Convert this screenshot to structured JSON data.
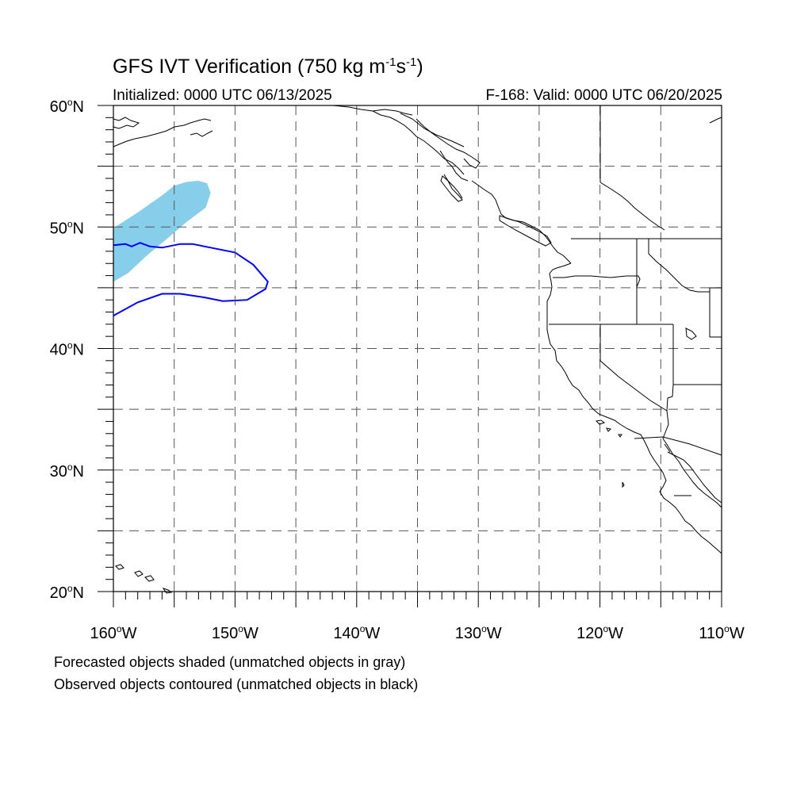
{
  "title": {
    "main": "GFS IVT Verification (750 kg m",
    "exp1": "-1",
    "mid": "s",
    "exp2": "-1",
    "end": ")"
  },
  "initialized": "Initialized: 0000 UTC 06/13/2025",
  "valid": "F-168: Valid: 0000 UTC 06/20/2025",
  "map": {
    "lon_range": [
      -160,
      -110
    ],
    "lat_range": [
      20,
      60
    ],
    "lat_ticks": [
      {
        "value": 20,
        "num": "20",
        "sym": "o",
        "hem": "N"
      },
      {
        "value": 30,
        "num": "30",
        "sym": "o",
        "hem": "N"
      },
      {
        "value": 40,
        "num": "40",
        "sym": "o",
        "hem": "N"
      },
      {
        "value": 50,
        "num": "50",
        "sym": "o",
        "hem": "N"
      },
      {
        "value": 60,
        "num": "60",
        "sym": "o",
        "hem": "N"
      }
    ],
    "lon_ticks": [
      {
        "value": -160,
        "num": "160",
        "sym": "o",
        "hem": "W"
      },
      {
        "value": -150,
        "num": "150",
        "sym": "o",
        "hem": "W"
      },
      {
        "value": -140,
        "num": "140",
        "sym": "o",
        "hem": "W"
      },
      {
        "value": -130,
        "num": "130",
        "sym": "o",
        "hem": "W"
      },
      {
        "value": -120,
        "num": "120",
        "sym": "o",
        "hem": "W"
      },
      {
        "value": -110,
        "num": "110",
        "sym": "o",
        "hem": "W"
      }
    ],
    "grid_interval_deg": 5,
    "grid_style": "dashed",
    "forecast_object_color": "#87ceeb",
    "observed_object_color": "#0000ff",
    "forecast_object": [
      [
        -160,
        49.9
      ],
      [
        -158,
        51.2
      ],
      [
        -156,
        52.6
      ],
      [
        -155,
        53.4
      ],
      [
        -154,
        53.7
      ],
      [
        -153,
        53.8
      ],
      [
        -152.3,
        53.6
      ],
      [
        -152.0,
        52.8
      ],
      [
        -152.4,
        51.6
      ],
      [
        -154,
        50.4
      ],
      [
        -155.5,
        49.1
      ],
      [
        -157.2,
        47.7
      ],
      [
        -158.8,
        46.2
      ],
      [
        -160,
        45.5
      ]
    ],
    "observed_object": [
      [
        -160,
        48.5
      ],
      [
        -159,
        48.6
      ],
      [
        -158.5,
        48.4
      ],
      [
        -157.8,
        48.7
      ],
      [
        -157,
        48.4
      ],
      [
        -156,
        48.3
      ],
      [
        -154.5,
        48.6
      ],
      [
        -153.5,
        48.6
      ],
      [
        -152,
        48.3
      ],
      [
        -150,
        47.9
      ],
      [
        -148.5,
        46.9
      ],
      [
        -147.3,
        45.5
      ],
      [
        -147.5,
        44.9
      ],
      [
        -149,
        44.0
      ],
      [
        -151,
        43.9
      ],
      [
        -152.5,
        44.2
      ],
      [
        -154.5,
        44.5
      ],
      [
        -156,
        44.5
      ],
      [
        -158,
        43.8
      ],
      [
        -160,
        42.7
      ]
    ]
  },
  "notes": {
    "forecast": "Forecasted objects shaded (unmatched objects in gray)",
    "observed": "Observed objects contoured (unmatched objects in black)"
  }
}
